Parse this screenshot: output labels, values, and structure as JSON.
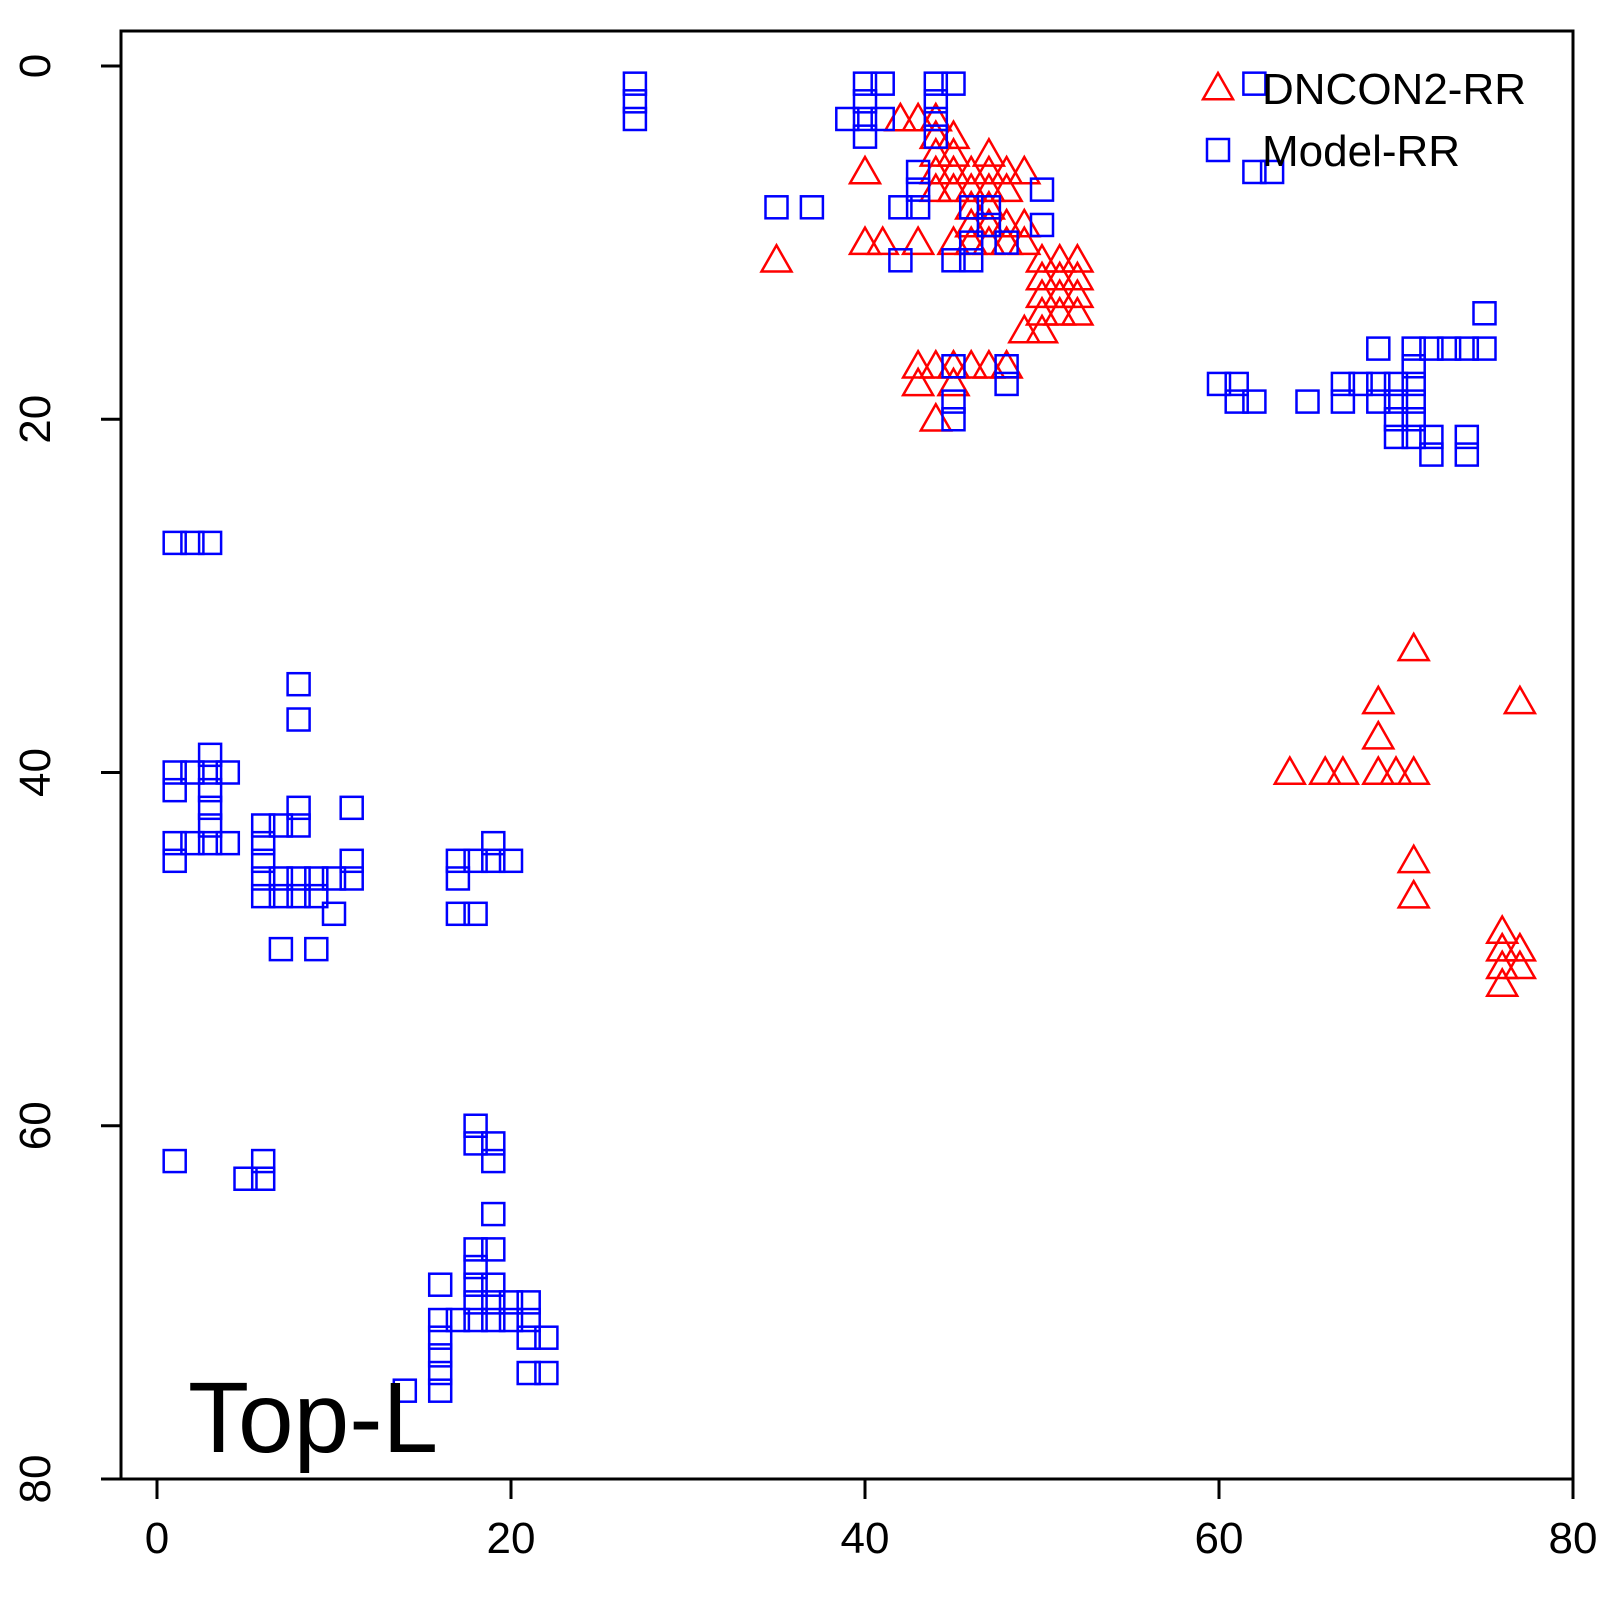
{
  "chart_data": {
    "type": "scatter",
    "title": "",
    "xlabel": "",
    "ylabel": "",
    "xlim": [
      0,
      80
    ],
    "ylim": [
      0,
      80
    ],
    "y_reversed": true,
    "grid": false,
    "legend_position": "top-right",
    "x_ticks": [
      "0",
      "20",
      "40",
      "60",
      "80"
    ],
    "y_ticks": [
      "0",
      "20",
      "40",
      "60",
      "80"
    ],
    "annotation": "Top-L",
    "series": [
      {
        "name": "DNCON2-RR",
        "marker": "triangle",
        "color": "#ff0000",
        "points": [
          [
            35,
            11
          ],
          [
            40,
            6
          ],
          [
            40,
            10
          ],
          [
            41,
            10
          ],
          [
            42,
            3
          ],
          [
            43,
            3
          ],
          [
            43,
            10
          ],
          [
            44,
            3
          ],
          [
            44,
            4
          ],
          [
            44,
            5
          ],
          [
            44,
            6
          ],
          [
            44,
            7
          ],
          [
            45,
            4
          ],
          [
            45,
            5
          ],
          [
            45,
            6
          ],
          [
            45,
            7
          ],
          [
            45,
            10
          ],
          [
            46,
            6
          ],
          [
            46,
            7
          ],
          [
            46,
            8
          ],
          [
            46,
            9
          ],
          [
            46,
            10
          ],
          [
            47,
            5
          ],
          [
            47,
            6
          ],
          [
            47,
            7
          ],
          [
            47,
            8
          ],
          [
            47,
            9
          ],
          [
            47,
            10
          ],
          [
            48,
            6
          ],
          [
            48,
            7
          ],
          [
            48,
            9
          ],
          [
            48,
            10
          ],
          [
            49,
            6
          ],
          [
            49,
            9
          ],
          [
            49,
            10
          ],
          [
            50,
            11
          ],
          [
            50,
            12
          ],
          [
            50,
            13
          ],
          [
            50,
            14
          ],
          [
            50,
            15
          ],
          [
            51,
            11
          ],
          [
            51,
            12
          ],
          [
            51,
            13
          ],
          [
            51,
            14
          ],
          [
            52,
            11
          ],
          [
            52,
            12
          ],
          [
            52,
            13
          ],
          [
            52,
            14
          ],
          [
            49,
            15
          ],
          [
            43,
            17
          ],
          [
            43,
            18
          ],
          [
            44,
            17
          ],
          [
            44,
            20
          ],
          [
            45,
            17
          ],
          [
            45,
            18
          ],
          [
            46,
            17
          ],
          [
            47,
            17
          ],
          [
            48,
            17
          ],
          [
            64,
            40
          ],
          [
            66,
            40
          ],
          [
            67,
            40
          ],
          [
            69,
            36
          ],
          [
            69,
            38
          ],
          [
            69,
            40
          ],
          [
            70,
            40
          ],
          [
            71,
            33
          ],
          [
            71,
            40
          ],
          [
            71,
            45
          ],
          [
            71,
            47
          ],
          [
            77,
            36
          ],
          [
            76,
            49
          ],
          [
            76,
            50
          ],
          [
            76,
            51
          ],
          [
            76,
            52
          ],
          [
            77,
            50
          ],
          [
            77,
            51
          ]
        ]
      },
      {
        "name": "Model-RR",
        "marker": "square",
        "color": "#0000ff",
        "points": [
          [
            27,
            1
          ],
          [
            27,
            2
          ],
          [
            27,
            3
          ],
          [
            35,
            8
          ],
          [
            37,
            8
          ],
          [
            39,
            3
          ],
          [
            40,
            1
          ],
          [
            40,
            2
          ],
          [
            40,
            3
          ],
          [
            40,
            4
          ],
          [
            41,
            1
          ],
          [
            41,
            3
          ],
          [
            42,
            8
          ],
          [
            42,
            11
          ],
          [
            43,
            6
          ],
          [
            43,
            7
          ],
          [
            43,
            8
          ],
          [
            44,
            1
          ],
          [
            44,
            2
          ],
          [
            44,
            3
          ],
          [
            44,
            4
          ],
          [
            45,
            1
          ],
          [
            45,
            11
          ],
          [
            45,
            17
          ],
          [
            45,
            19
          ],
          [
            45,
            20
          ],
          [
            46,
            8
          ],
          [
            46,
            10
          ],
          [
            46,
            11
          ],
          [
            47,
            8
          ],
          [
            47,
            9
          ],
          [
            48,
            10
          ],
          [
            48,
            17
          ],
          [
            48,
            18
          ],
          [
            50,
            7
          ],
          [
            50,
            9
          ],
          [
            62,
            1
          ],
          [
            62,
            6
          ],
          [
            63,
            6
          ],
          [
            60,
            18
          ],
          [
            61,
            18
          ],
          [
            61,
            19
          ],
          [
            62,
            19
          ],
          [
            65,
            19
          ],
          [
            67,
            18
          ],
          [
            67,
            19
          ],
          [
            68,
            18
          ],
          [
            69,
            16
          ],
          [
            69,
            18
          ],
          [
            69,
            19
          ],
          [
            70,
            18
          ],
          [
            70,
            19
          ],
          [
            70,
            20
          ],
          [
            70,
            21
          ],
          [
            71,
            16
          ],
          [
            71,
            17
          ],
          [
            71,
            18
          ],
          [
            71,
            19
          ],
          [
            71,
            20
          ],
          [
            71,
            21
          ],
          [
            72,
            16
          ],
          [
            72,
            21
          ],
          [
            72,
            22
          ],
          [
            73,
            16
          ],
          [
            74,
            16
          ],
          [
            74,
            21
          ],
          [
            74,
            22
          ],
          [
            75,
            14
          ],
          [
            75,
            16
          ],
          [
            1,
            27
          ],
          [
            2,
            27
          ],
          [
            3,
            27
          ],
          [
            1,
            40
          ],
          [
            1,
            41
          ],
          [
            1,
            44
          ],
          [
            1,
            45
          ],
          [
            2,
            40
          ],
          [
            2,
            44
          ],
          [
            3,
            39
          ],
          [
            3,
            40
          ],
          [
            3,
            41
          ],
          [
            3,
            42
          ],
          [
            3,
            43
          ],
          [
            3,
            44
          ],
          [
            4,
            40
          ],
          [
            4,
            44
          ],
          [
            6,
            43
          ],
          [
            6,
            44
          ],
          [
            6,
            45
          ],
          [
            6,
            46
          ],
          [
            6,
            47
          ],
          [
            7,
            43
          ],
          [
            7,
            46
          ],
          [
            7,
            47
          ],
          [
            7,
            50
          ],
          [
            8,
            35
          ],
          [
            8,
            37
          ],
          [
            8,
            42
          ],
          [
            8,
            43
          ],
          [
            8,
            46
          ],
          [
            8,
            47
          ],
          [
            9,
            46
          ],
          [
            9,
            47
          ],
          [
            9,
            50
          ],
          [
            10,
            46
          ],
          [
            10,
            48
          ],
          [
            11,
            42
          ],
          [
            11,
            45
          ],
          [
            11,
            46
          ],
          [
            17,
            45
          ],
          [
            17,
            46
          ],
          [
            17,
            48
          ],
          [
            18,
            45
          ],
          [
            18,
            48
          ],
          [
            19,
            44
          ],
          [
            19,
            45
          ],
          [
            20,
            45
          ],
          [
            1,
            62
          ],
          [
            5,
            63
          ],
          [
            6,
            62
          ],
          [
            6,
            63
          ],
          [
            14,
            75
          ],
          [
            16,
            69
          ],
          [
            16,
            71
          ],
          [
            16,
            72
          ],
          [
            16,
            73
          ],
          [
            16,
            74
          ],
          [
            16,
            75
          ],
          [
            17,
            71
          ],
          [
            18,
            60
          ],
          [
            18,
            61
          ],
          [
            18,
            67
          ],
          [
            18,
            68
          ],
          [
            18,
            69
          ],
          [
            18,
            70
          ],
          [
            18,
            71
          ],
          [
            19,
            61
          ],
          [
            19,
            62
          ],
          [
            19,
            65
          ],
          [
            19,
            67
          ],
          [
            19,
            69
          ],
          [
            19,
            70
          ],
          [
            19,
            71
          ],
          [
            20,
            70
          ],
          [
            20,
            71
          ],
          [
            21,
            70
          ],
          [
            21,
            71
          ],
          [
            21,
            72
          ],
          [
            21,
            74
          ],
          [
            22,
            72
          ],
          [
            22,
            74
          ]
        ]
      }
    ]
  }
}
